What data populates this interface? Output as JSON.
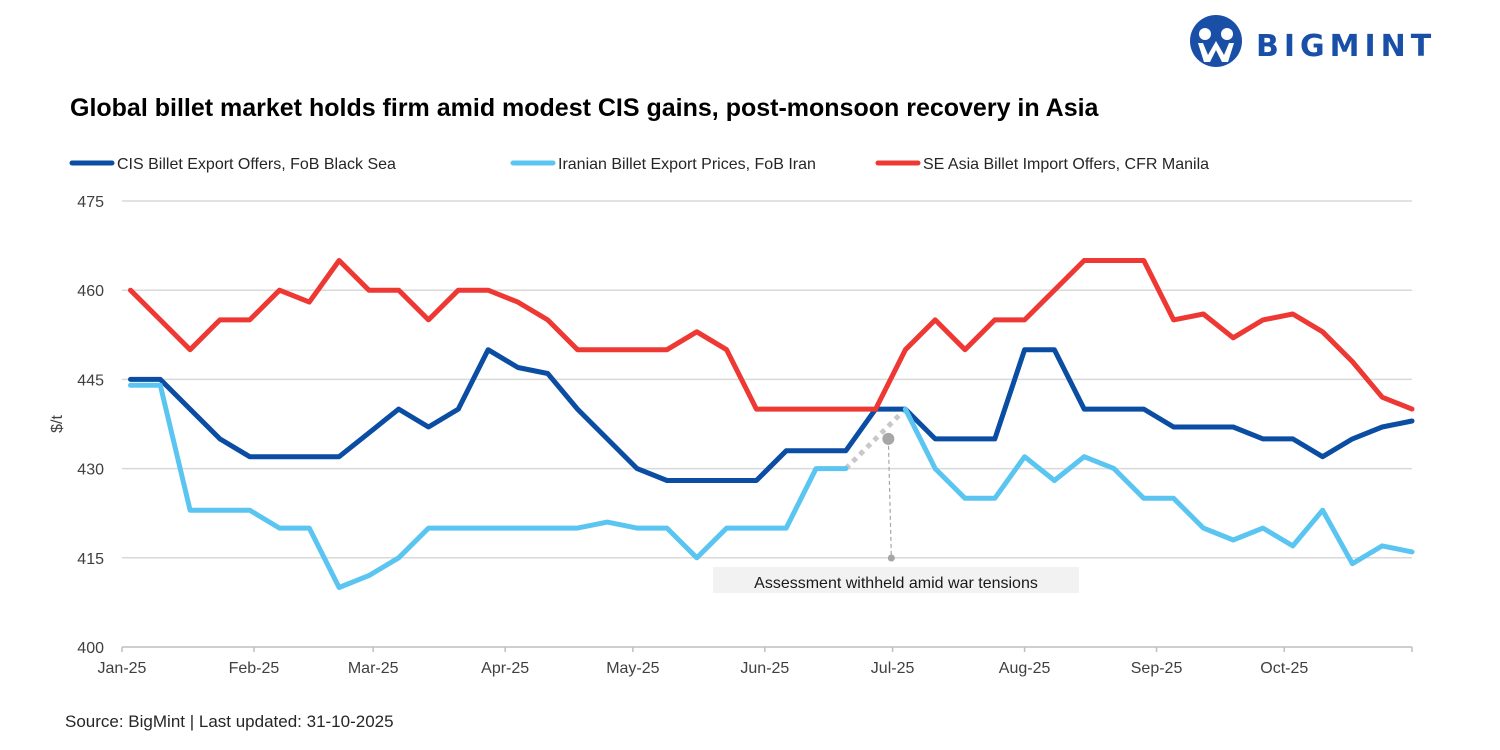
{
  "brand": {
    "logo_text": "BIGMINT",
    "color": "#1a4fa8"
  },
  "chart_data": {
    "type": "line",
    "title": "Global billet market holds firm amid modest CIS gains, post-monsoon recovery in Asia",
    "ylabel": "$/t",
    "xlabel": "",
    "ylim": [
      400,
      475
    ],
    "yticks": [
      "400",
      "415",
      "430",
      "445",
      "460",
      "475"
    ],
    "xlim": [
      "2025-01-01",
      "2025-10-31"
    ],
    "xticks": [
      {
        "date": "2025-01-01",
        "label": "Jan-25"
      },
      {
        "date": "2025-02-01",
        "label": "Feb-25"
      },
      {
        "date": "2025-03-01",
        "label": "Mar-25"
      },
      {
        "date": "2025-04-01",
        "label": "Apr-25"
      },
      {
        "date": "2025-05-01",
        "label": "May-25"
      },
      {
        "date": "2025-06-01",
        "label": "Jun-25"
      },
      {
        "date": "2025-07-01",
        "label": "Jul-25"
      },
      {
        "date": "2025-08-01",
        "label": "Aug-25"
      },
      {
        "date": "2025-09-01",
        "label": "Sep-25"
      },
      {
        "date": "2025-10-01",
        "label": "Oct-25"
      }
    ],
    "grid": "horizontal",
    "legend_position": "top",
    "x": [
      "2025-01-03",
      "2025-01-10",
      "2025-01-17",
      "2025-01-24",
      "2025-01-31",
      "2025-02-07",
      "2025-02-14",
      "2025-02-21",
      "2025-02-28",
      "2025-03-07",
      "2025-03-14",
      "2025-03-21",
      "2025-03-28",
      "2025-04-04",
      "2025-04-11",
      "2025-04-18",
      "2025-04-25",
      "2025-05-02",
      "2025-05-09",
      "2025-05-16",
      "2025-05-23",
      "2025-05-30",
      "2025-06-06",
      "2025-06-13",
      "2025-06-20",
      "2025-06-27",
      "2025-07-04",
      "2025-07-11",
      "2025-07-18",
      "2025-07-25",
      "2025-08-01",
      "2025-08-08",
      "2025-08-15",
      "2025-08-22",
      "2025-08-29",
      "2025-09-05",
      "2025-09-12",
      "2025-09-19",
      "2025-09-26",
      "2025-10-03",
      "2025-10-10",
      "2025-10-17",
      "2025-10-24",
      "2025-10-31"
    ],
    "series": [
      {
        "name": "CIS Billet Export Offers, FoB Black Sea",
        "color": "#0a4da2",
        "values": [
          445,
          445,
          440,
          435,
          432,
          432,
          432,
          432,
          436,
          440,
          437,
          440,
          450,
          447,
          446,
          440,
          435,
          430,
          428,
          428,
          428,
          428,
          433,
          433,
          433,
          440,
          440,
          435,
          435,
          435,
          450,
          450,
          440,
          440,
          440,
          437,
          437,
          437,
          435,
          435,
          432,
          435,
          437,
          438
        ]
      },
      {
        "name": "Iranian Billet Export Prices, FoB Iran",
        "color": "#5bc5f2",
        "values": [
          444,
          444,
          423,
          423,
          423,
          420,
          420,
          410,
          412,
          415,
          420,
          420,
          420,
          420,
          420,
          420,
          421,
          420,
          420,
          415,
          420,
          420,
          420,
          430,
          430,
          null,
          440,
          430,
          425,
          425,
          432,
          428,
          432,
          430,
          425,
          425,
          420,
          418,
          420,
          417,
          423,
          414,
          417,
          416
        ]
      },
      {
        "name": "SE Asia Billet Import Offers, CFR Manila",
        "color": "#ee3833",
        "values": [
          460,
          455,
          450,
          455,
          455,
          460,
          458,
          465,
          460,
          460,
          455,
          460,
          460,
          458,
          455,
          450,
          450,
          450,
          450,
          453,
          450,
          440,
          440,
          440,
          440,
          440,
          450,
          455,
          450,
          455,
          455,
          460,
          465,
          465,
          465,
          455,
          456,
          452,
          455,
          456,
          453,
          448,
          442,
          440
        ]
      }
    ],
    "annotation": {
      "text": "Assessment withheld amid  war tensions",
      "date": "2025-06-30",
      "value": 435,
      "color": "#a6a6a6"
    },
    "source": "Source: BigMint | Last updated: 31-10-2025"
  }
}
